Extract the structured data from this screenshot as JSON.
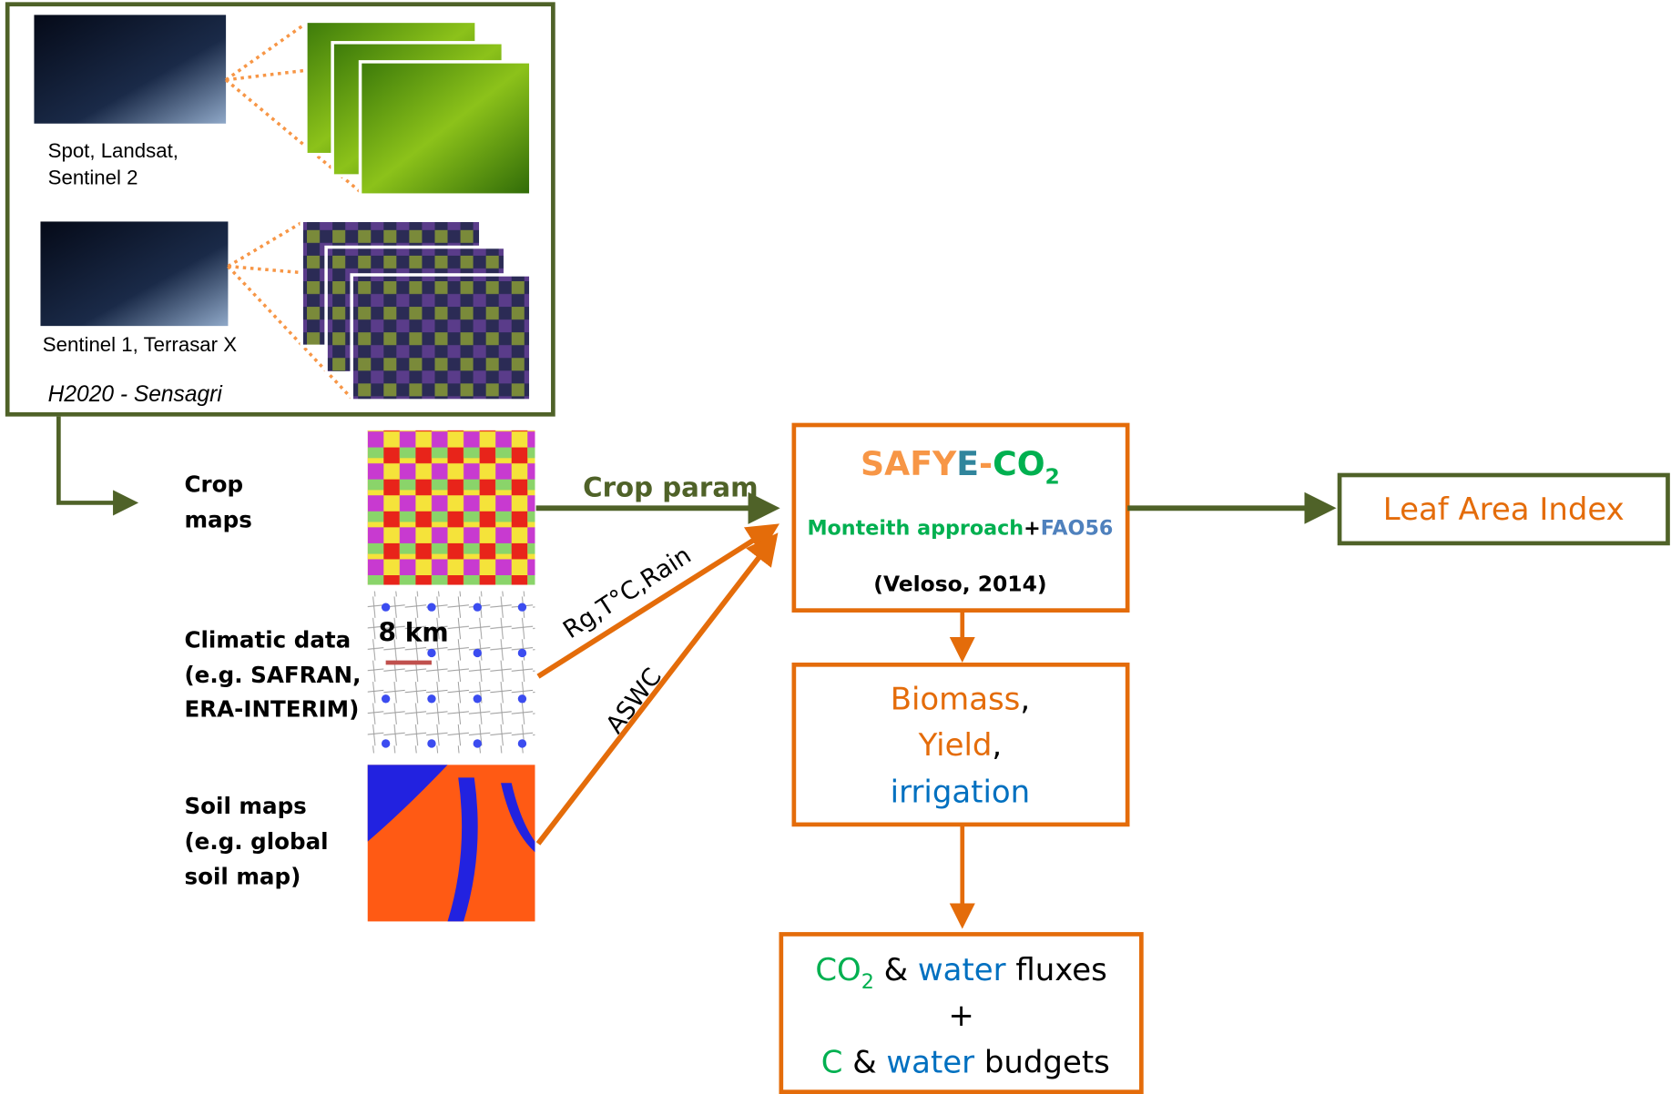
{
  "optical": {
    "label_lines": [
      "Spot, Landsat,",
      "Sentinel 2"
    ]
  },
  "radar": {
    "label": "Sentinel 1, Terrasar X"
  },
  "project": "H2020 - Sensagri",
  "inputs": [
    {
      "label_lines": [
        "Crop",
        "maps"
      ]
    },
    {
      "label_lines": [
        "Climatic data",
        "(e.g. SAFRAN,",
        "ERA-INTERIM)"
      ],
      "scale_label": "8 km"
    },
    {
      "label_lines": [
        "Soil maps",
        "(e.g. global",
        "soil map)"
      ]
    }
  ],
  "arrows": {
    "crop": "Crop param",
    "climate": "Rg,T°C,Rain",
    "soil": "ASWC"
  },
  "model": {
    "name": [
      "SAFY",
      "E",
      "-",
      "CO",
      "2"
    ],
    "approach": [
      "Monteith approach",
      "+",
      "FAO56"
    ],
    "reference": "(Veloso, 2014)"
  },
  "lai": "Leaf Area Index",
  "outputs": {
    "lines": [
      [
        "Biomass",
        ","
      ],
      [
        "Yield",
        ","
      ],
      [
        "irrigation"
      ]
    ]
  },
  "fluxes": {
    "line1": [
      "CO",
      "2",
      " & ",
      "water",
      " fluxes"
    ],
    "plus": "+",
    "line2": [
      "C",
      " & ",
      "water",
      " budgets"
    ]
  }
}
